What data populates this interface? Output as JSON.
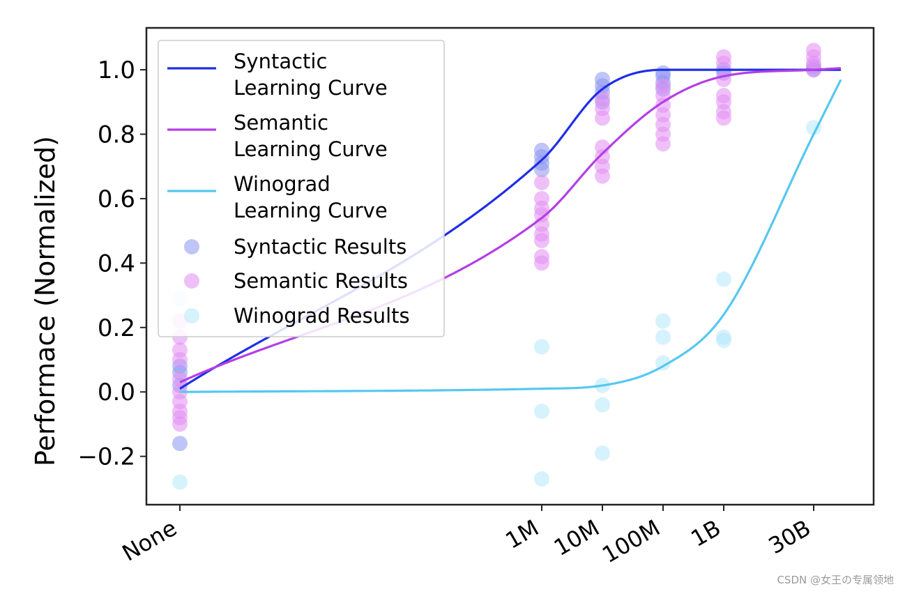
{
  "chart_data": {
    "type": "scatter",
    "title": "",
    "xlabel": "",
    "ylabel": "Performace (Normalized)",
    "x_categories": [
      "None",
      "1M",
      "10M",
      "100M",
      "1B",
      "30B"
    ],
    "ylim": [
      -0.35,
      1.13
    ],
    "yticks": [
      -0.2,
      0.0,
      0.2,
      0.4,
      0.6,
      0.8,
      1.0
    ],
    "ytick_labels": [
      "−0.2",
      "0.0",
      "0.2",
      "0.4",
      "0.6",
      "0.8",
      "1.0"
    ],
    "grid": false,
    "legend_position": "top-left",
    "curves": [
      {
        "name": "Syntactic\nLearning Curve",
        "color": "#1f2ee6",
        "points": [
          {
            "x": "None",
            "y": 0.01
          },
          {
            "x": "1M",
            "y": 0.72
          },
          {
            "x": "10M",
            "y": 0.94
          },
          {
            "x": "100M",
            "y": 1.0
          },
          {
            "x": "1B",
            "y": 1.0
          },
          {
            "x": "30B",
            "y": 1.0
          }
        ]
      },
      {
        "name": "Semantic\nLearning Curve",
        "color": "#b43ee6",
        "points": [
          {
            "x": "None",
            "y": 0.03
          },
          {
            "x": "1M",
            "y": 0.54
          },
          {
            "x": "10M",
            "y": 0.74
          },
          {
            "x": "100M",
            "y": 0.9
          },
          {
            "x": "1B",
            "y": 0.98
          },
          {
            "x": "30B",
            "y": 1.0
          }
        ]
      },
      {
        "name": "Winograd\nLearning Curve",
        "color": "#55c8f0",
        "points": [
          {
            "x": "None",
            "y": 0.0
          },
          {
            "x": "1M",
            "y": 0.01
          },
          {
            "x": "10M",
            "y": 0.02
          },
          {
            "x": "100M",
            "y": 0.08
          },
          {
            "x": "1B",
            "y": 0.24
          },
          {
            "x": "30B",
            "y": 0.8
          }
        ]
      }
    ],
    "scatter": [
      {
        "name": "Syntactic Results",
        "color": "#8c96f0",
        "points": [
          {
            "x": "None",
            "y": 0.08
          },
          {
            "x": "None",
            "y": 0.06
          },
          {
            "x": "None",
            "y": 0.02
          },
          {
            "x": "None",
            "y": -0.16
          },
          {
            "x": "1M",
            "y": 0.75
          },
          {
            "x": "1M",
            "y": 0.73
          },
          {
            "x": "1M",
            "y": 0.71
          },
          {
            "x": "1M",
            "y": 0.69
          },
          {
            "x": "10M",
            "y": 0.97
          },
          {
            "x": "10M",
            "y": 0.95
          },
          {
            "x": "10M",
            "y": 0.93
          },
          {
            "x": "10M",
            "y": 0.9
          },
          {
            "x": "100M",
            "y": 0.99
          },
          {
            "x": "100M",
            "y": 0.98
          },
          {
            "x": "100M",
            "y": 0.96
          },
          {
            "x": "100M",
            "y": 0.94
          },
          {
            "x": "1B",
            "y": 1.0
          },
          {
            "x": "1B",
            "y": 0.99
          },
          {
            "x": "30B",
            "y": 1.01
          },
          {
            "x": "30B",
            "y": 1.0
          }
        ]
      },
      {
        "name": "Semantic Results",
        "color": "#e28cf2",
        "points": [
          {
            "x": "None",
            "y": 0.22
          },
          {
            "x": "None",
            "y": 0.17
          },
          {
            "x": "None",
            "y": 0.13
          },
          {
            "x": "None",
            "y": 0.1
          },
          {
            "x": "None",
            "y": 0.04
          },
          {
            "x": "None",
            "y": 0.0
          },
          {
            "x": "None",
            "y": -0.03
          },
          {
            "x": "None",
            "y": -0.06
          },
          {
            "x": "None",
            "y": -0.08
          },
          {
            "x": "None",
            "y": -0.1
          },
          {
            "x": "1M",
            "y": 0.65
          },
          {
            "x": "1M",
            "y": 0.6
          },
          {
            "x": "1M",
            "y": 0.57
          },
          {
            "x": "1M",
            "y": 0.55
          },
          {
            "x": "1M",
            "y": 0.52
          },
          {
            "x": "1M",
            "y": 0.49
          },
          {
            "x": "1M",
            "y": 0.47
          },
          {
            "x": "1M",
            "y": 0.42
          },
          {
            "x": "1M",
            "y": 0.4
          },
          {
            "x": "10M",
            "y": 0.91
          },
          {
            "x": "10M",
            "y": 0.88
          },
          {
            "x": "10M",
            "y": 0.85
          },
          {
            "x": "10M",
            "y": 0.76
          },
          {
            "x": "10M",
            "y": 0.73
          },
          {
            "x": "10M",
            "y": 0.7
          },
          {
            "x": "10M",
            "y": 0.67
          },
          {
            "x": "100M",
            "y": 0.95
          },
          {
            "x": "100M",
            "y": 0.92
          },
          {
            "x": "100M",
            "y": 0.89
          },
          {
            "x": "100M",
            "y": 0.86
          },
          {
            "x": "100M",
            "y": 0.83
          },
          {
            "x": "100M",
            "y": 0.8
          },
          {
            "x": "100M",
            "y": 0.77
          },
          {
            "x": "1B",
            "y": 1.04
          },
          {
            "x": "1B",
            "y": 1.02
          },
          {
            "x": "1B",
            "y": 0.97
          },
          {
            "x": "1B",
            "y": 0.92
          },
          {
            "x": "1B",
            "y": 0.9
          },
          {
            "x": "1B",
            "y": 0.87
          },
          {
            "x": "1B",
            "y": 0.85
          },
          {
            "x": "30B",
            "y": 1.06
          },
          {
            "x": "30B",
            "y": 1.04
          },
          {
            "x": "30B",
            "y": 1.02
          },
          {
            "x": "30B",
            "y": 1.0
          }
        ]
      },
      {
        "name": "Winograd Results",
        "color": "#b5e8fb",
        "points": [
          {
            "x": "None",
            "y": 0.29
          },
          {
            "x": "None",
            "y": -0.28
          },
          {
            "x": "1M",
            "y": 0.14
          },
          {
            "x": "1M",
            "y": -0.06
          },
          {
            "x": "1M",
            "y": -0.27
          },
          {
            "x": "10M",
            "y": 0.02
          },
          {
            "x": "10M",
            "y": -0.04
          },
          {
            "x": "10M",
            "y": -0.19
          },
          {
            "x": "100M",
            "y": 0.22
          },
          {
            "x": "100M",
            "y": 0.17
          },
          {
            "x": "100M",
            "y": 0.09
          },
          {
            "x": "1B",
            "y": 0.35
          },
          {
            "x": "1B",
            "y": 0.17
          },
          {
            "x": "1B",
            "y": 0.16
          },
          {
            "x": "30B",
            "y": 0.82
          }
        ]
      }
    ]
  },
  "watermark": "CSDN @女王の专属领地"
}
